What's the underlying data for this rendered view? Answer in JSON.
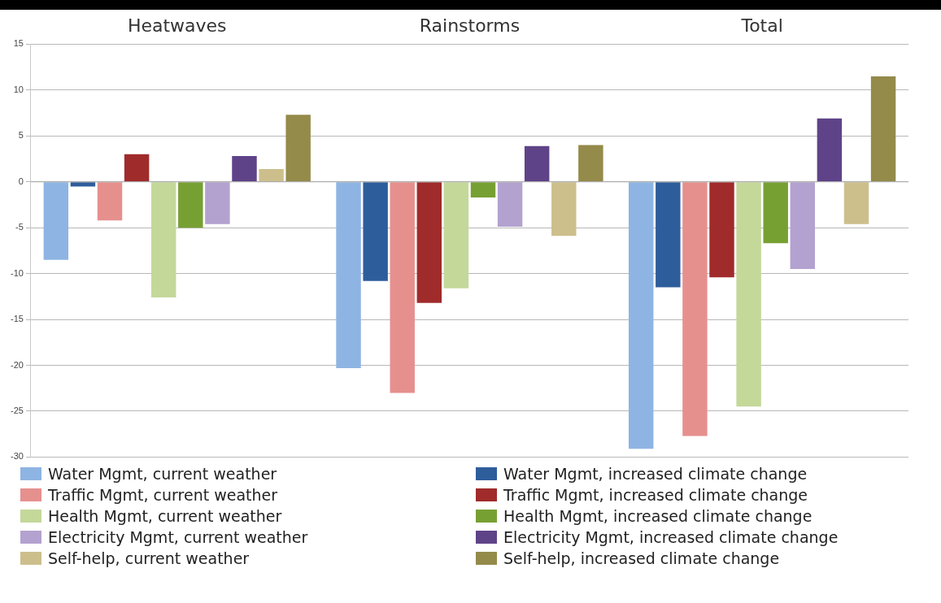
{
  "chart_data": {
    "type": "bar",
    "categories": [
      "Heatwaves",
      "Rainstorms",
      "Total"
    ],
    "series": [
      {
        "name": "Water Mgmt, current weather",
        "color": "#8eb4e3",
        "values": [
          -8.5,
          -20.3,
          -29.1
        ]
      },
      {
        "name": "Water Mgmt, increased climate change",
        "color": "#2e5d9b",
        "values": [
          -0.5,
          -10.8,
          -11.5
        ]
      },
      {
        "name": "Traffic Mgmt, current weather",
        "color": "#e6908e",
        "values": [
          -4.2,
          -23.0,
          -27.7
        ]
      },
      {
        "name": "Traffic Mgmt, increased climate change",
        "color": "#a02b2b",
        "values": [
          3.0,
          -13.2,
          -10.4
        ]
      },
      {
        "name": "Health Mgmt, current weather",
        "color": "#c4d89a",
        "values": [
          -12.6,
          -11.6,
          -24.5
        ]
      },
      {
        "name": "Health Mgmt, increased climate change",
        "color": "#77a033",
        "values": [
          -5.0,
          -1.7,
          -6.7
        ]
      },
      {
        "name": "Electricity Mgmt, current weather",
        "color": "#b3a2cf",
        "values": [
          -4.6,
          -4.9,
          -9.5
        ]
      },
      {
        "name": "Electricity Mgmt, increased climate change",
        "color": "#5f4388",
        "values": [
          2.8,
          3.9,
          6.9
        ]
      },
      {
        "name": "Self-help, current weather",
        "color": "#cdbf8c",
        "values": [
          1.4,
          -5.9,
          -4.6
        ]
      },
      {
        "name": "Self-help, increased climate change",
        "color": "#948a4a",
        "values": [
          7.3,
          4.0,
          11.5
        ]
      }
    ],
    "ylim": [
      -30,
      15
    ],
    "yticks": [
      -30,
      -25,
      -20,
      -15,
      -10,
      -5,
      0,
      5,
      10,
      15
    ],
    "grid": "y",
    "legend": "bottom"
  }
}
